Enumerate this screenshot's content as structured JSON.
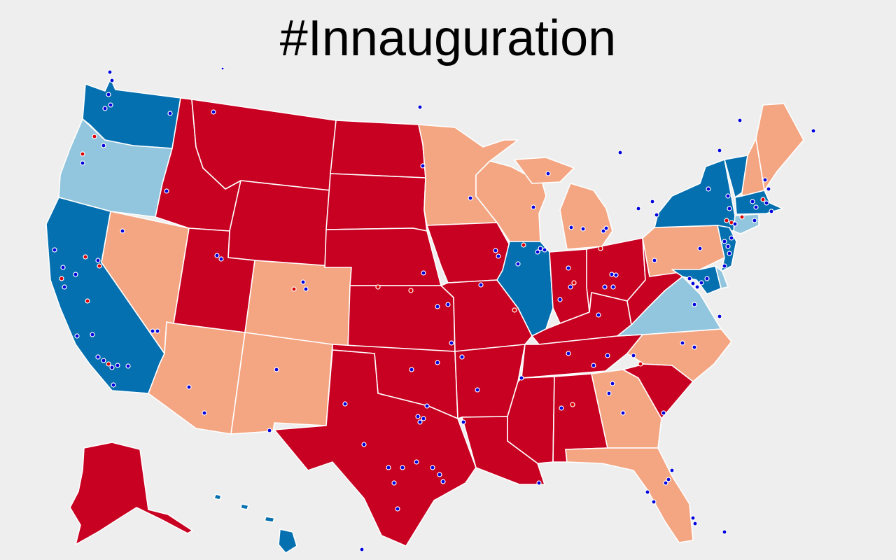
{
  "title": "#Innauguration",
  "colors": {
    "background": "#eeeeee",
    "strong_red": "#c80021",
    "light_red": "#f4a582",
    "strong_blue": "#0570b0",
    "light_blue": "#92c5de",
    "dot_blue": "#0000dd",
    "dot_red": "#dd0000",
    "border": "#ffffff"
  },
  "states": [
    {
      "id": "WA",
      "category": "strong_blue"
    },
    {
      "id": "OR",
      "category": "light_blue"
    },
    {
      "id": "CA",
      "category": "strong_blue"
    },
    {
      "id": "NV",
      "category": "light_red"
    },
    {
      "id": "ID",
      "category": "strong_red"
    },
    {
      "id": "MT",
      "category": "strong_red"
    },
    {
      "id": "WY",
      "category": "strong_red"
    },
    {
      "id": "UT",
      "category": "strong_red"
    },
    {
      "id": "AZ",
      "category": "light_red"
    },
    {
      "id": "CO",
      "category": "light_red"
    },
    {
      "id": "NM",
      "category": "light_red"
    },
    {
      "id": "ND",
      "category": "strong_red"
    },
    {
      "id": "SD",
      "category": "strong_red"
    },
    {
      "id": "NE",
      "category": "strong_red"
    },
    {
      "id": "KS",
      "category": "strong_red"
    },
    {
      "id": "OK",
      "category": "strong_red"
    },
    {
      "id": "TX",
      "category": "strong_red"
    },
    {
      "id": "MN",
      "category": "light_red"
    },
    {
      "id": "IA",
      "category": "strong_red"
    },
    {
      "id": "MO",
      "category": "strong_red"
    },
    {
      "id": "AR",
      "category": "strong_red"
    },
    {
      "id": "LA",
      "category": "strong_red"
    },
    {
      "id": "WI",
      "category": "light_red"
    },
    {
      "id": "IL",
      "category": "strong_blue"
    },
    {
      "id": "MI",
      "category": "light_red"
    },
    {
      "id": "IN",
      "category": "strong_red"
    },
    {
      "id": "OH",
      "category": "strong_red"
    },
    {
      "id": "KY",
      "category": "strong_red"
    },
    {
      "id": "TN",
      "category": "strong_red"
    },
    {
      "id": "MS",
      "category": "strong_red"
    },
    {
      "id": "AL",
      "category": "strong_red"
    },
    {
      "id": "GA",
      "category": "light_red"
    },
    {
      "id": "FL",
      "category": "light_red"
    },
    {
      "id": "SC",
      "category": "strong_red"
    },
    {
      "id": "NC",
      "category": "light_red"
    },
    {
      "id": "VA",
      "category": "light_blue"
    },
    {
      "id": "WV",
      "category": "strong_red"
    },
    {
      "id": "PA",
      "category": "light_red"
    },
    {
      "id": "NY",
      "category": "strong_blue"
    },
    {
      "id": "VT",
      "category": "strong_blue"
    },
    {
      "id": "NH",
      "category": "light_red"
    },
    {
      "id": "ME",
      "category": "light_red"
    },
    {
      "id": "MA",
      "category": "strong_blue"
    },
    {
      "id": "CT",
      "category": "light_blue"
    },
    {
      "id": "NJ",
      "category": "strong_blue"
    },
    {
      "id": "DE",
      "category": "light_blue"
    },
    {
      "id": "MD",
      "category": "strong_blue"
    },
    {
      "id": "AK",
      "category": "strong_red"
    },
    {
      "id": "HI",
      "category": "strong_blue"
    }
  ]
}
